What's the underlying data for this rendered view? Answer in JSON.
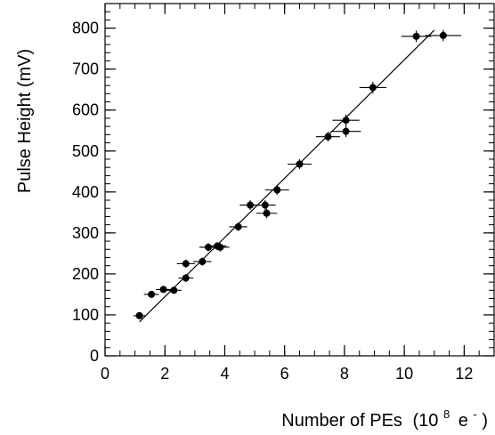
{
  "chart_data": {
    "type": "scatter",
    "title": "",
    "xlabel": "Number of PEs",
    "xlabel_unit": "(10",
    "xlabel_unit_exponent": "8",
    "xlabel_unit_symbol": "e",
    "xlabel_unit_symbol_exponent": "-",
    "xlabel_unit_close": ")",
    "ylabel": "Pulse Height (mV)",
    "xlim": [
      0,
      13
    ],
    "ylim": [
      0,
      860
    ],
    "grid": false,
    "x_ticks": [
      0,
      2,
      4,
      6,
      8,
      10,
      12
    ],
    "x_tick_labels": [
      "0",
      "2",
      "4",
      "6",
      "8",
      "10",
      "12"
    ],
    "y_ticks": [
      0,
      100,
      200,
      300,
      400,
      500,
      600,
      700,
      800
    ],
    "y_tick_labels": [
      "0",
      "100",
      "200",
      "300",
      "400",
      "500",
      "600",
      "700",
      "800"
    ],
    "x_minor_step": 0.5,
    "y_minor_step": 20,
    "series": [
      {
        "points": [
          {
            "x": 1.15,
            "y": 98,
            "xerr": 0.2,
            "yerr": 8
          },
          {
            "x": 1.55,
            "y": 150,
            "xerr": 0.25,
            "yerr": 8
          },
          {
            "x": 1.95,
            "y": 162,
            "xerr": 0.25,
            "yerr": 8
          },
          {
            "x": 2.3,
            "y": 160,
            "xerr": 0.25,
            "yerr": 8
          },
          {
            "x": 2.7,
            "y": 190,
            "xerr": 0.25,
            "yerr": 10
          },
          {
            "x": 2.7,
            "y": 225,
            "xerr": 0.3,
            "yerr": 10
          },
          {
            "x": 3.25,
            "y": 230,
            "xerr": 0.3,
            "yerr": 10
          },
          {
            "x": 3.45,
            "y": 265,
            "xerr": 0.3,
            "yerr": 10
          },
          {
            "x": 3.75,
            "y": 268,
            "xerr": 0.3,
            "yerr": 10
          },
          {
            "x": 3.85,
            "y": 265,
            "xerr": 0.3,
            "yerr": 10
          },
          {
            "x": 4.45,
            "y": 315,
            "xerr": 0.3,
            "yerr": 10
          },
          {
            "x": 4.85,
            "y": 368,
            "xerr": 0.35,
            "yerr": 12
          },
          {
            "x": 5.35,
            "y": 368,
            "xerr": 0.35,
            "yerr": 12
          },
          {
            "x": 5.4,
            "y": 348,
            "xerr": 0.35,
            "yerr": 12
          },
          {
            "x": 5.75,
            "y": 405,
            "xerr": 0.4,
            "yerr": 12
          },
          {
            "x": 6.5,
            "y": 468,
            "xerr": 0.4,
            "yerr": 12
          },
          {
            "x": 7.45,
            "y": 535,
            "xerr": 0.4,
            "yerr": 12
          },
          {
            "x": 8.05,
            "y": 575,
            "xerr": 0.45,
            "yerr": 14
          },
          {
            "x": 8.05,
            "y": 548,
            "xerr": 0.5,
            "yerr": 14
          },
          {
            "x": 8.95,
            "y": 655,
            "xerr": 0.45,
            "yerr": 14
          },
          {
            "x": 10.4,
            "y": 780,
            "xerr": 0.5,
            "yerr": 14
          },
          {
            "x": 11.3,
            "y": 782,
            "xerr": 0.6,
            "yerr": 14
          }
        ]
      }
    ],
    "fit_line": {
      "x": [
        1.15,
        11.0
      ],
      "y": [
        83,
        795
      ]
    },
    "colors": {
      "markers": "#000000",
      "line": "#000000",
      "axes": "#000000",
      "background": "#ffffff"
    }
  }
}
